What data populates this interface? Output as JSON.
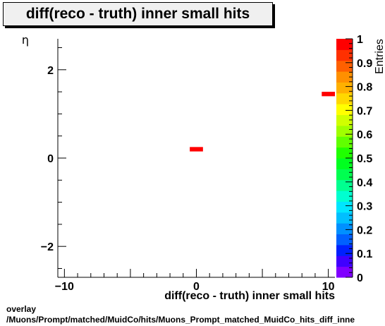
{
  "title": "diff(reco - truth) inner small hits",
  "footer": {
    "line1": "overlay",
    "line2": "/Muons/Prompt/matched/MuidCo/hits/Muons_Prompt_matched_MuidCo_hits_diff_inne"
  },
  "colors": {
    "marker": "#ff0000",
    "axis": "#000000"
  },
  "chart_data": {
    "type": "heatmap",
    "xlabel": "diff(reco - truth) inner small hits",
    "ylabel": "η",
    "zlabel": "Entries",
    "xlim": [
      -10.5,
      10.5
    ],
    "ylim": [
      -2.7,
      2.7
    ],
    "zlim": [
      0,
      1
    ],
    "x_ticks": [
      -10,
      0,
      10
    ],
    "x_tick_labels": [
      "−10",
      "0",
      "10"
    ],
    "y_ticks": [
      -2,
      0,
      2
    ],
    "y_tick_labels": [
      "−2",
      "0",
      "2"
    ],
    "z_ticks": [
      0,
      0.1,
      0.2,
      0.3,
      0.4,
      0.5,
      0.6,
      0.7,
      0.8,
      0.9,
      1
    ],
    "z_tick_labels": [
      "0",
      "0.1",
      "0.2",
      "0.3",
      "0.4",
      "0.5",
      "0.6",
      "0.7",
      "0.8",
      "0.9",
      "1"
    ],
    "bins": [
      {
        "x": [
          -0.5,
          0.5
        ],
        "y": [
          0.15,
          0.25
        ],
        "value": 1
      },
      {
        "x": [
          9.5,
          10.5
        ],
        "y": [
          1.4,
          1.5
        ],
        "value": 1
      }
    ],
    "grid": false
  }
}
